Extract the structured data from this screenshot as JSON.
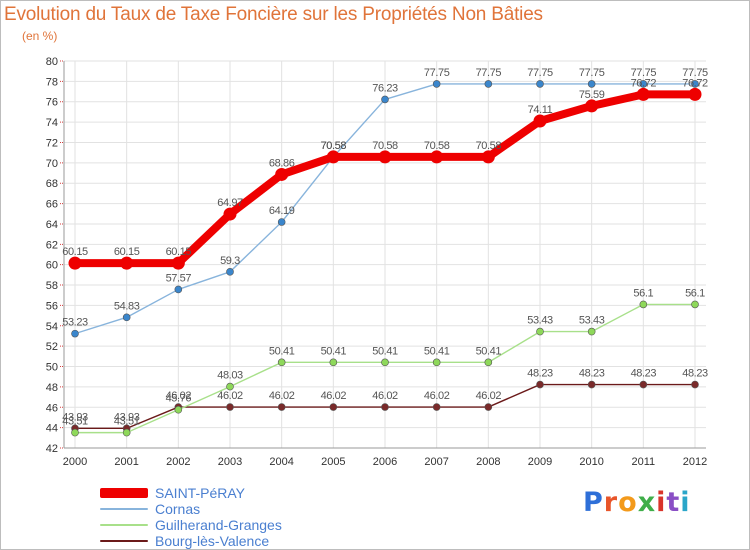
{
  "title": "Evolution du Taux de Taxe Foncière sur les Propriétés Non Bâties",
  "subtitle": "(en %)",
  "logo": {
    "letters": [
      "P",
      "r",
      "o",
      "x",
      "i",
      "t",
      "i"
    ]
  },
  "chart_data": {
    "type": "line",
    "title": "Evolution du Taux de Taxe Foncière sur les Propriétés Non Bâties",
    "subtitle": "(en %)",
    "xlabel": "",
    "ylabel": "",
    "x": [
      "2000",
      "2001",
      "2002",
      "2003",
      "2004",
      "2005",
      "2006",
      "2007",
      "2008",
      "2009",
      "2010",
      "2011",
      "2012"
    ],
    "ylim": [
      42,
      80
    ],
    "yticks": [
      42,
      44,
      46,
      48,
      50,
      52,
      54,
      56,
      58,
      60,
      62,
      64,
      66,
      68,
      70,
      72,
      74,
      76,
      78,
      80
    ],
    "grid": true,
    "legend_position": "bottom-left",
    "series": [
      {
        "name": "Bourg-lès-Valence",
        "color": "#6b1a1a",
        "marker": "#7a2a2a",
        "values": [
          43.93,
          43.93,
          46.02,
          46.02,
          46.02,
          46.02,
          46.02,
          46.02,
          46.02,
          48.23,
          48.23,
          48.23,
          48.23
        ],
        "labels": [
          "43.93",
          "43.93",
          "46.02",
          "46.02",
          "46.02",
          "46.02",
          "46.02",
          "46.02",
          "46.02",
          "48.23",
          "48.23",
          "48.23",
          "48.23"
        ]
      },
      {
        "name": "Guilherand-Granges",
        "color": "#a8e08a",
        "marker": "#8ed85a",
        "values": [
          43.51,
          43.51,
          45.76,
          48.03,
          50.41,
          50.41,
          50.41,
          50.41,
          50.41,
          53.43,
          53.43,
          56.1,
          56.1
        ],
        "labels": [
          "43.51",
          "43.51",
          "45.76",
          "48.03",
          "50.41",
          "50.41",
          "50.41",
          "50.41",
          "50.41",
          "53.43",
          "53.43",
          "56.1",
          "56.1"
        ]
      },
      {
        "name": "Cornas",
        "color": "#88b4dc",
        "marker": "#3a86cc",
        "values": [
          53.23,
          54.83,
          57.57,
          59.3,
          64.19,
          70.58,
          76.23,
          77.75,
          77.75,
          77.75,
          77.75,
          77.75,
          77.75
        ],
        "labels": [
          "53.23",
          "54.83",
          "57.57",
          "59.3",
          "64.19",
          "70.58",
          "76.23",
          "77.75",
          "77.75",
          "77.75",
          "77.75",
          "77.75",
          "77.75"
        ]
      },
      {
        "name": "SAINT-PéRAY",
        "color": "#ee0000",
        "marker": "#ee0000",
        "values": [
          60.15,
          60.15,
          60.15,
          64.97,
          68.86,
          70.58,
          70.58,
          70.58,
          70.58,
          74.11,
          75.59,
          76.72,
          76.72
        ],
        "labels": [
          "60.15",
          "60.15",
          "60.15",
          "64.97",
          "68.86",
          "70.58",
          "70.58",
          "70.58",
          "70.58",
          "74.11",
          "75.59",
          "76.72",
          "76.72"
        ]
      }
    ]
  },
  "legend": [
    {
      "name": "SAINT-PéRAY",
      "color": "#ee0000"
    },
    {
      "name": "Cornas",
      "color": "#88b4dc"
    },
    {
      "name": "Guilherand-Granges",
      "color": "#a8e08a"
    },
    {
      "name": "Bourg-lès-Valence",
      "color": "#6b1a1a"
    }
  ]
}
